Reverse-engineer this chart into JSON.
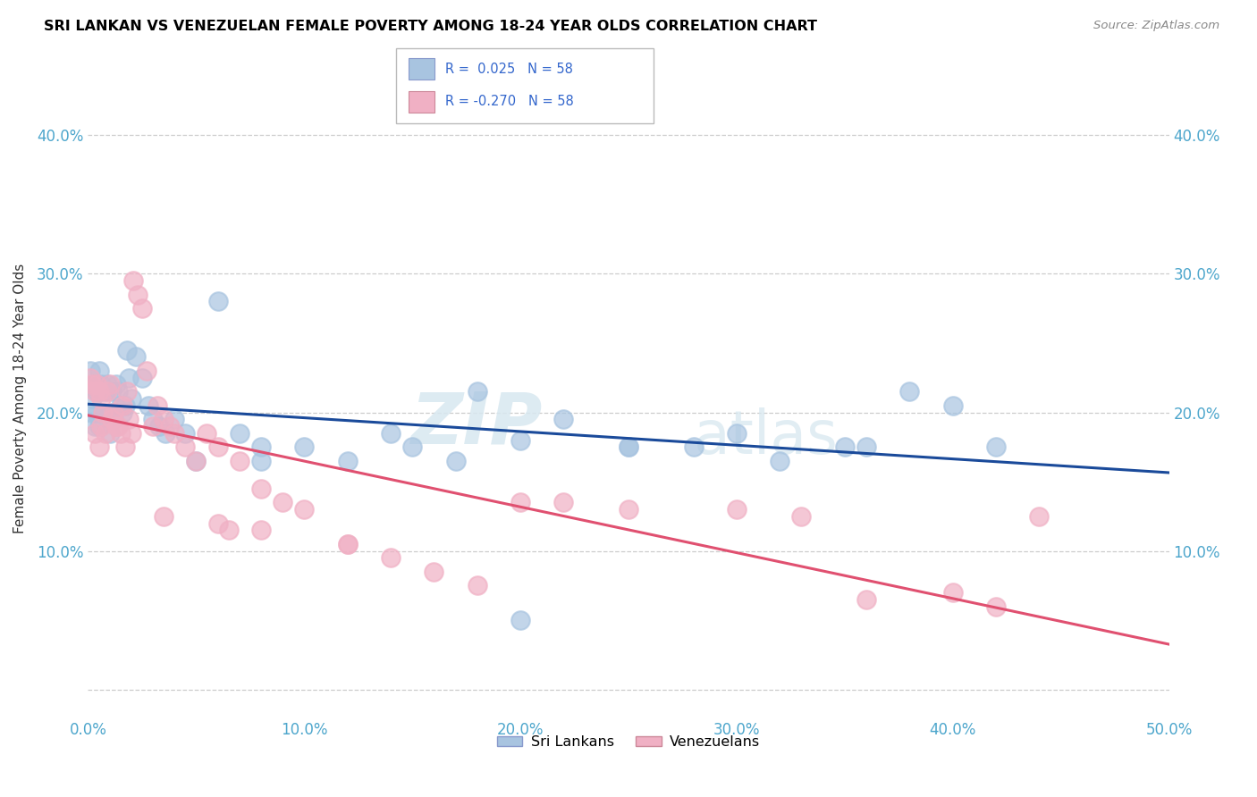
{
  "title": "SRI LANKAN VS VENEZUELAN FEMALE POVERTY AMONG 18-24 YEAR OLDS CORRELATION CHART",
  "source": "Source: ZipAtlas.com",
  "ylabel": "Female Poverty Among 18-24 Year Olds",
  "xlim": [
    0.0,
    0.5
  ],
  "ylim": [
    -0.02,
    0.44
  ],
  "yticks": [
    0.0,
    0.1,
    0.2,
    0.3,
    0.4
  ],
  "xticks": [
    0.0,
    0.1,
    0.2,
    0.3,
    0.4,
    0.5
  ],
  "xtick_labels": [
    "0.0%",
    "10.0%",
    "20.0%",
    "30.0%",
    "40.0%",
    "50.0%"
  ],
  "ytick_labels": [
    "",
    "10.0%",
    "20.0%",
    "30.0%",
    "40.0%"
  ],
  "legend_r_sri": " 0.025",
  "legend_r_ven": "-0.270",
  "legend_n": "58",
  "sri_color": "#a8c4e0",
  "ven_color": "#f0b0c4",
  "sri_line_color": "#1a4a9a",
  "ven_line_color": "#e05070",
  "watermark_zip": "ZIP",
  "watermark_atlas": "atlas",
  "figsize": [
    14.06,
    8.92
  ],
  "dpi": 100,
  "sri_x": [
    0.001,
    0.002,
    0.002,
    0.003,
    0.003,
    0.004,
    0.004,
    0.005,
    0.005,
    0.006,
    0.006,
    0.007,
    0.008,
    0.009,
    0.01,
    0.01,
    0.011,
    0.012,
    0.013,
    0.014,
    0.015,
    0.016,
    0.017,
    0.018,
    0.019,
    0.02,
    0.022,
    0.025,
    0.028,
    0.03,
    0.033,
    0.036,
    0.04,
    0.045,
    0.05,
    0.06,
    0.07,
    0.08,
    0.1,
    0.12,
    0.14,
    0.18,
    0.2,
    0.22,
    0.25,
    0.3,
    0.35,
    0.38,
    0.4,
    0.42,
    0.2,
    0.25,
    0.28,
    0.32,
    0.36,
    0.15,
    0.17,
    0.08
  ],
  "sri_y": [
    0.23,
    0.21,
    0.2,
    0.22,
    0.19,
    0.215,
    0.2,
    0.23,
    0.19,
    0.215,
    0.22,
    0.2,
    0.215,
    0.22,
    0.2,
    0.185,
    0.215,
    0.195,
    0.22,
    0.215,
    0.205,
    0.2,
    0.205,
    0.245,
    0.225,
    0.21,
    0.24,
    0.225,
    0.205,
    0.195,
    0.19,
    0.185,
    0.195,
    0.185,
    0.165,
    0.28,
    0.185,
    0.175,
    0.175,
    0.165,
    0.185,
    0.215,
    0.18,
    0.195,
    0.175,
    0.185,
    0.175,
    0.215,
    0.205,
    0.175,
    0.05,
    0.175,
    0.175,
    0.165,
    0.175,
    0.175,
    0.165,
    0.165
  ],
  "ven_x": [
    0.001,
    0.002,
    0.003,
    0.003,
    0.004,
    0.005,
    0.005,
    0.006,
    0.006,
    0.007,
    0.008,
    0.009,
    0.01,
    0.011,
    0.012,
    0.013,
    0.014,
    0.015,
    0.016,
    0.017,
    0.018,
    0.019,
    0.02,
    0.021,
    0.023,
    0.025,
    0.027,
    0.03,
    0.032,
    0.035,
    0.038,
    0.04,
    0.045,
    0.05,
    0.055,
    0.06,
    0.065,
    0.07,
    0.08,
    0.09,
    0.1,
    0.12,
    0.14,
    0.16,
    0.18,
    0.2,
    0.22,
    0.25,
    0.3,
    0.33,
    0.36,
    0.4,
    0.42,
    0.44,
    0.12,
    0.06,
    0.08,
    0.035
  ],
  "ven_y": [
    0.225,
    0.22,
    0.215,
    0.185,
    0.22,
    0.215,
    0.175,
    0.21,
    0.19,
    0.2,
    0.185,
    0.215,
    0.22,
    0.195,
    0.2,
    0.19,
    0.19,
    0.185,
    0.205,
    0.175,
    0.215,
    0.195,
    0.185,
    0.295,
    0.285,
    0.275,
    0.23,
    0.19,
    0.205,
    0.195,
    0.19,
    0.185,
    0.175,
    0.165,
    0.185,
    0.175,
    0.115,
    0.165,
    0.145,
    0.135,
    0.13,
    0.105,
    0.095,
    0.085,
    0.075,
    0.135,
    0.135,
    0.13,
    0.13,
    0.125,
    0.065,
    0.07,
    0.06,
    0.125,
    0.105,
    0.12,
    0.115,
    0.125
  ]
}
